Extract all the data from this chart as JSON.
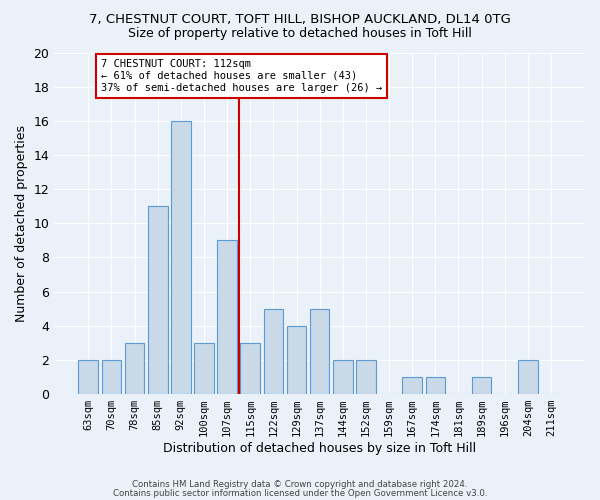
{
  "title1": "7, CHESTNUT COURT, TOFT HILL, BISHOP AUCKLAND, DL14 0TG",
  "title2": "Size of property relative to detached houses in Toft Hill",
  "xlabel": "Distribution of detached houses by size in Toft Hill",
  "ylabel": "Number of detached properties",
  "categories": [
    "63sqm",
    "70sqm",
    "78sqm",
    "85sqm",
    "92sqm",
    "100sqm",
    "107sqm",
    "115sqm",
    "122sqm",
    "129sqm",
    "137sqm",
    "144sqm",
    "152sqm",
    "159sqm",
    "167sqm",
    "174sqm",
    "181sqm",
    "189sqm",
    "196sqm",
    "204sqm",
    "211sqm"
  ],
  "values": [
    2,
    2,
    3,
    11,
    16,
    3,
    9,
    3,
    5,
    4,
    5,
    2,
    2,
    0,
    1,
    1,
    0,
    1,
    0,
    2,
    0
  ],
  "bar_color": "#c9d9e8",
  "bar_edge_color": "#5b9bd5",
  "vline_color": "#cc0000",
  "annotation_text": "7 CHESTNUT COURT: 112sqm\n← 61% of detached houses are smaller (43)\n37% of semi-detached houses are larger (26) →",
  "annotation_box_color": "white",
  "annotation_box_edge": "#cc0000",
  "ylim": [
    0,
    20
  ],
  "yticks": [
    0,
    2,
    4,
    6,
    8,
    10,
    12,
    14,
    16,
    18,
    20
  ],
  "background_color": "#eaf1f8",
  "footer1": "Contains HM Land Registry data © Crown copyright and database right 2024.",
  "footer2": "Contains public sector information licensed under the Open Government Licence v3.0."
}
